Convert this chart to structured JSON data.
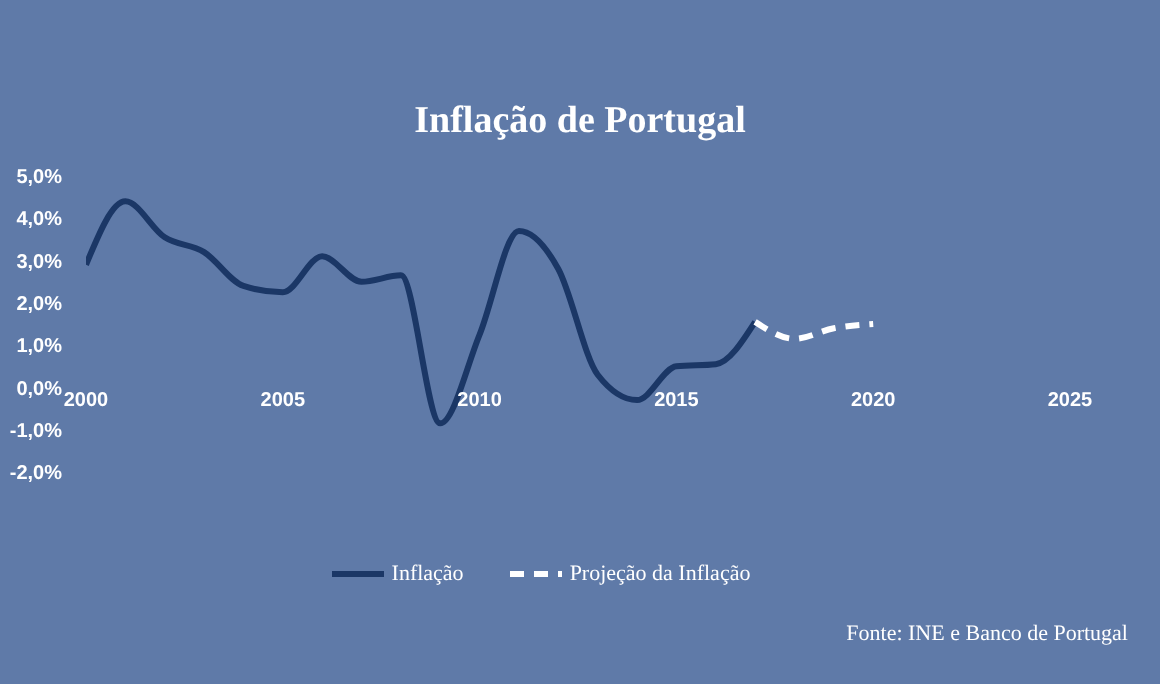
{
  "chart_data": {
    "type": "line",
    "title": "Inflação de Portugal",
    "annotations": [
      "Fonte: INE e Banco de Portugal"
    ],
    "series": [
      {
        "name": "Inflação",
        "color": "#1b3766",
        "line_style": "solid",
        "x": [
          2000,
          2001,
          2002,
          2003,
          2004,
          2005,
          2006,
          2007,
          2008,
          2009,
          2010,
          2011,
          2012,
          2013,
          2014,
          2015,
          2016,
          2017
        ],
        "values": [
          2.9,
          4.4,
          3.55,
          3.2,
          2.4,
          2.25,
          3.1,
          2.5,
          2.65,
          -0.85,
          1.25,
          3.7,
          2.8,
          0.3,
          -0.3,
          0.5,
          0.55,
          1.55
        ]
      },
      {
        "name": "Projeção da Inflação",
        "color": "#ffffff",
        "line_style": "dashed",
        "x": [
          2017,
          2018,
          2019,
          2020
        ],
        "values": [
          1.55,
          1.15,
          1.4,
          1.5
        ]
      }
    ],
    "xlim": [
      2000,
      2025
    ],
    "xticks": [
      2000,
      2005,
      2010,
      2015,
      2020,
      2025
    ],
    "ylim": [
      -2,
      5
    ],
    "yticks": [
      {
        "value": -2,
        "label": "-2,0%"
      },
      {
        "value": -1,
        "label": "-1,0%"
      },
      {
        "value": 0,
        "label": "0,0%"
      },
      {
        "value": 1,
        "label": "1,0%"
      },
      {
        "value": 2,
        "label": "2,0%"
      },
      {
        "value": 3,
        "label": "3,0%"
      },
      {
        "value": 4,
        "label": "4,0%"
      },
      {
        "value": 5,
        "label": "5,0%"
      }
    ],
    "legend": "bottom",
    "marker": "none"
  }
}
